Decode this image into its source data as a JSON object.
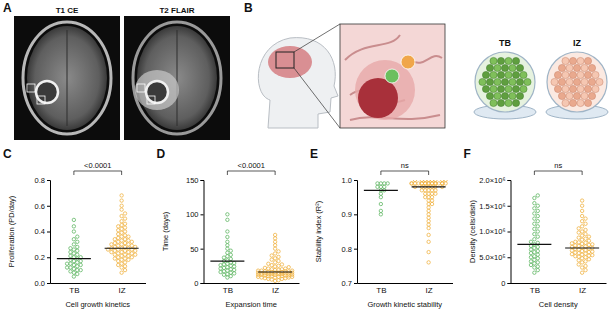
{
  "figure": {
    "panels": [
      "A",
      "B",
      "C",
      "D",
      "E",
      "F"
    ],
    "mri_labels": [
      "T1 CE",
      "T2 FLAIR"
    ],
    "dish_labels": [
      "TB",
      "IZ"
    ]
  },
  "chart_data": [
    {
      "type": "strip",
      "categories": [
        "TB",
        "IZ"
      ],
      "colors": [
        "#62b866",
        "#f0b445"
      ],
      "marker": "circle-open",
      "values": [
        [
          0.05,
          0.07,
          0.08,
          0.09,
          0.1,
          0.1,
          0.11,
          0.12,
          0.12,
          0.13,
          0.14,
          0.14,
          0.15,
          0.15,
          0.16,
          0.17,
          0.17,
          0.18,
          0.19,
          0.2,
          0.2,
          0.21,
          0.22,
          0.23,
          0.24,
          0.25,
          0.26,
          0.27,
          0.28,
          0.3,
          0.32,
          0.34,
          0.36,
          0.4,
          0.44,
          0.49
        ],
        [
          0.08,
          0.1,
          0.12,
          0.13,
          0.14,
          0.15,
          0.16,
          0.17,
          0.18,
          0.18,
          0.19,
          0.19,
          0.2,
          0.2,
          0.21,
          0.21,
          0.22,
          0.22,
          0.22,
          0.23,
          0.23,
          0.24,
          0.24,
          0.24,
          0.25,
          0.25,
          0.25,
          0.26,
          0.26,
          0.26,
          0.27,
          0.27,
          0.27,
          0.28,
          0.28,
          0.28,
          0.29,
          0.29,
          0.3,
          0.3,
          0.3,
          0.31,
          0.31,
          0.32,
          0.32,
          0.33,
          0.33,
          0.34,
          0.34,
          0.35,
          0.36,
          0.36,
          0.37,
          0.38,
          0.39,
          0.4,
          0.41,
          0.42,
          0.43,
          0.44,
          0.45,
          0.46,
          0.48,
          0.5,
          0.52,
          0.54,
          0.57,
          0.6,
          0.64,
          0.68
        ]
      ],
      "means": [
        0.19,
        0.27
      ],
      "ylabel": "Proliferation (PD/day)",
      "xlabel": "Cell growth kinetics",
      "annotation": "<0.0001",
      "ylim": [
        0,
        0.8
      ],
      "yticks": [
        {
          "value": 0,
          "label": "0.0"
        },
        0.2,
        0.4,
        0.6,
        0.8
      ]
    },
    {
      "type": "strip",
      "categories": [
        "TB",
        "IZ"
      ],
      "colors": [
        "#62b866",
        "#f0b445"
      ],
      "marker": "circle-open",
      "values": [
        [
          8,
          10,
          12,
          13,
          14,
          15,
          16,
          17,
          18,
          19,
          20,
          21,
          22,
          23,
          24,
          25,
          26,
          27,
          28,
          29,
          30,
          32,
          33,
          35,
          37,
          39,
          41,
          44,
          47,
          50,
          55,
          60,
          67,
          75,
          92,
          100
        ],
        [
          3,
          4,
          5,
          6,
          6,
          7,
          7,
          8,
          8,
          8,
          9,
          9,
          9,
          10,
          10,
          10,
          11,
          11,
          11,
          12,
          12,
          12,
          12,
          13,
          13,
          13,
          13,
          14,
          14,
          14,
          14,
          15,
          15,
          15,
          15,
          16,
          16,
          16,
          17,
          17,
          17,
          18,
          18,
          18,
          19,
          19,
          20,
          20,
          21,
          21,
          22,
          23,
          24,
          25,
          26,
          27,
          28,
          30,
          32,
          34,
          36,
          38,
          40,
          43,
          46,
          50,
          55,
          60,
          65,
          70
        ]
      ],
      "means": [
        32,
        16
      ],
      "ylabel": "Time (days)",
      "xlabel": "Expansion time",
      "annotation": "<0.0001",
      "ylim": [
        0,
        150
      ],
      "yticks": [
        0,
        50,
        100,
        150
      ]
    },
    {
      "type": "strip",
      "categories": [
        "TB",
        "IZ"
      ],
      "colors": [
        "#62b866",
        "#f0b445"
      ],
      "marker": "circle-open",
      "values": [
        [
          0.9,
          0.91,
          0.93,
          0.95,
          0.96,
          0.97,
          0.97,
          0.98,
          0.98,
          0.98,
          0.99,
          0.99,
          0.99,
          0.99
        ],
        [
          0.76,
          0.79,
          0.82,
          0.84,
          0.86,
          0.87,
          0.88,
          0.89,
          0.9,
          0.91,
          0.92,
          0.93,
          0.93,
          0.94,
          0.94,
          0.95,
          0.95,
          0.95,
          0.96,
          0.96,
          0.96,
          0.96,
          0.97,
          0.97,
          0.97,
          0.97,
          0.97,
          0.98,
          0.98,
          0.98,
          0.98,
          0.98,
          0.98,
          0.98,
          0.99,
          0.99,
          0.99,
          0.99,
          0.99,
          0.99,
          0.99,
          0.99,
          0.99,
          0.99,
          0.99,
          0.99,
          0.99,
          0.99,
          0.99,
          0.99,
          0.99,
          0.99,
          1.0,
          1.0,
          1.0,
          1.0,
          1.0,
          1.0,
          1.0,
          1.0
        ]
      ],
      "means": [
        0.97,
        0.98
      ],
      "ylabel": "Stability index (R²)",
      "xlabel": "Growth kinetic stability",
      "annotation": "ns",
      "ylim": [
        0.7,
        1.0
      ],
      "yticks": [
        0.7,
        0.8,
        0.9,
        {
          "value": 1.0,
          "label": "1.0"
        }
      ]
    },
    {
      "type": "strip",
      "categories": [
        "TB",
        "IZ"
      ],
      "colors": [
        "#62b866",
        "#f0b445"
      ],
      "marker": "circle-open",
      "values": [
        [
          200000,
          250000,
          300000,
          320000,
          350000,
          380000,
          400000,
          420000,
          450000,
          480000,
          500000,
          520000,
          550000,
          580000,
          600000,
          620000,
          650000,
          680000,
          700000,
          720000,
          750000,
          780000,
          800000,
          850000,
          900000,
          950000,
          1000000,
          1050000,
          1100000,
          1150000,
          1200000,
          1250000,
          1300000,
          1350000,
          1400000,
          1450000,
          1500000,
          1550000,
          1650000,
          1700000
        ],
        [
          200000,
          250000,
          300000,
          330000,
          360000,
          400000,
          420000,
          440000,
          460000,
          480000,
          500000,
          510000,
          520000,
          530000,
          540000,
          550000,
          560000,
          570000,
          580000,
          590000,
          600000,
          610000,
          620000,
          630000,
          640000,
          650000,
          660000,
          670000,
          680000,
          690000,
          700000,
          710000,
          720000,
          730000,
          740000,
          750000,
          760000,
          770000,
          780000,
          790000,
          800000,
          820000,
          840000,
          860000,
          880000,
          900000,
          920000,
          950000,
          980000,
          1000000,
          1030000,
          1060000,
          1100000,
          1150000,
          1200000,
          1250000,
          1300000,
          1400000,
          1500000,
          1600000
        ]
      ],
      "means": [
        750000,
        680000
      ],
      "ylabel": "Density (cells/dish)",
      "xlabel": "Cell density",
      "annotation": "ns",
      "ylim": [
        0,
        2000000
      ],
      "yticks": [
        0,
        {
          "value": 500000,
          "label": "5.0×10⁵"
        },
        {
          "value": 1000000,
          "label": "1.0×10⁶"
        },
        {
          "value": 1500000,
          "label": "1.5×10⁶"
        },
        {
          "value": 2000000,
          "label": "2.0×10⁶"
        }
      ]
    }
  ]
}
